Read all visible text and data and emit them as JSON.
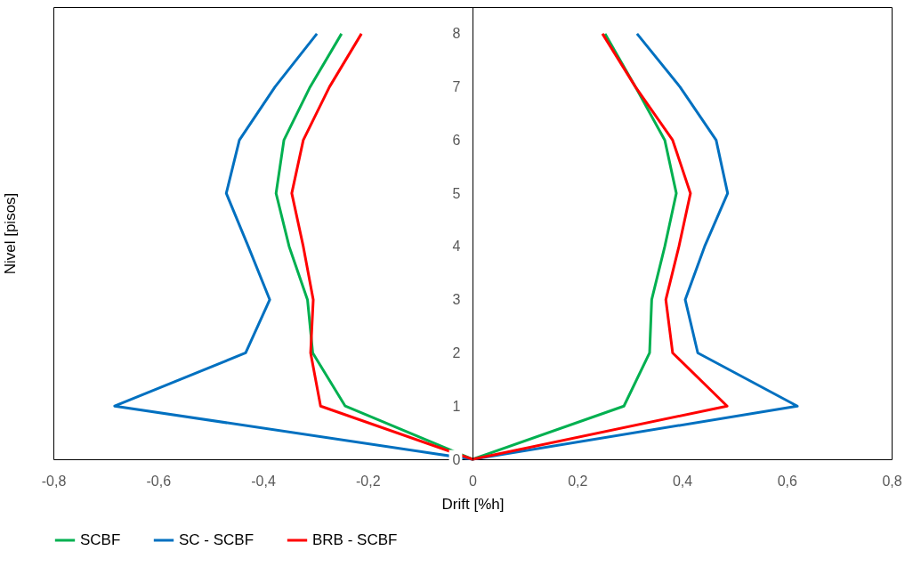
{
  "chart_data": {
    "type": "line",
    "xlabel": "Drift [%h]",
    "ylabel": "Nivel [pisos]",
    "xlim": [
      -0.8,
      0.8
    ],
    "xticks": [
      {
        "value": -0.8,
        "label": "-0,8"
      },
      {
        "value": -0.6,
        "label": "-0,6"
      },
      {
        "value": -0.4,
        "label": "-0,4"
      },
      {
        "value": -0.2,
        "label": "-0,2"
      },
      0,
      {
        "value": 0.2,
        "label": "0,2"
      },
      {
        "value": 0.4,
        "label": "0,4"
      },
      {
        "value": 0.6,
        "label": "0,6"
      },
      {
        "value": 0.8,
        "label": "0,8"
      }
    ],
    "ylim": [
      0,
      8.5
    ],
    "yticks": [
      0,
      1,
      2,
      3,
      4,
      5,
      6,
      7,
      8
    ],
    "grid": false,
    "legend": "bottom",
    "marker": "none",
    "series": [
      {
        "name": "SCBF",
        "color": "#00b050",
        "x": [
          -0.25,
          -0.31,
          -0.36,
          -0.375,
          -0.35,
          -0.315,
          -0.305,
          -0.243,
          0,
          0.289,
          0.338,
          0.342,
          0.367,
          0.389,
          0.367,
          0.311,
          0.253
        ],
        "values": [
          8,
          7,
          6,
          5,
          4,
          3,
          2,
          1,
          0,
          1,
          2,
          3,
          4,
          5,
          6,
          7,
          8
        ]
      },
      {
        "name": "SC - SCBF",
        "color": "#0070c0",
        "x": [
          -0.297,
          -0.377,
          -0.445,
          -0.47,
          -0.428,
          -0.387,
          -0.433,
          -0.683,
          0,
          0.62,
          0.43,
          0.406,
          0.443,
          0.487,
          0.465,
          0.396,
          0.314
        ],
        "values": [
          8,
          7,
          6,
          5,
          4,
          3,
          2,
          1,
          0,
          1,
          2,
          3,
          4,
          5,
          6,
          7,
          8
        ]
      },
      {
        "name": "BRB - SCBF",
        "color": "#ff0000",
        "x": [
          -0.212,
          -0.273,
          -0.323,
          -0.345,
          -0.323,
          -0.304,
          -0.309,
          -0.29,
          0,
          0.486,
          0.382,
          0.369,
          0.394,
          0.416,
          0.382,
          0.311,
          0.248
        ],
        "values": [
          8,
          7,
          6,
          5,
          4,
          3,
          2,
          1,
          0,
          1,
          2,
          3,
          4,
          5,
          6,
          7,
          8
        ]
      }
    ]
  }
}
